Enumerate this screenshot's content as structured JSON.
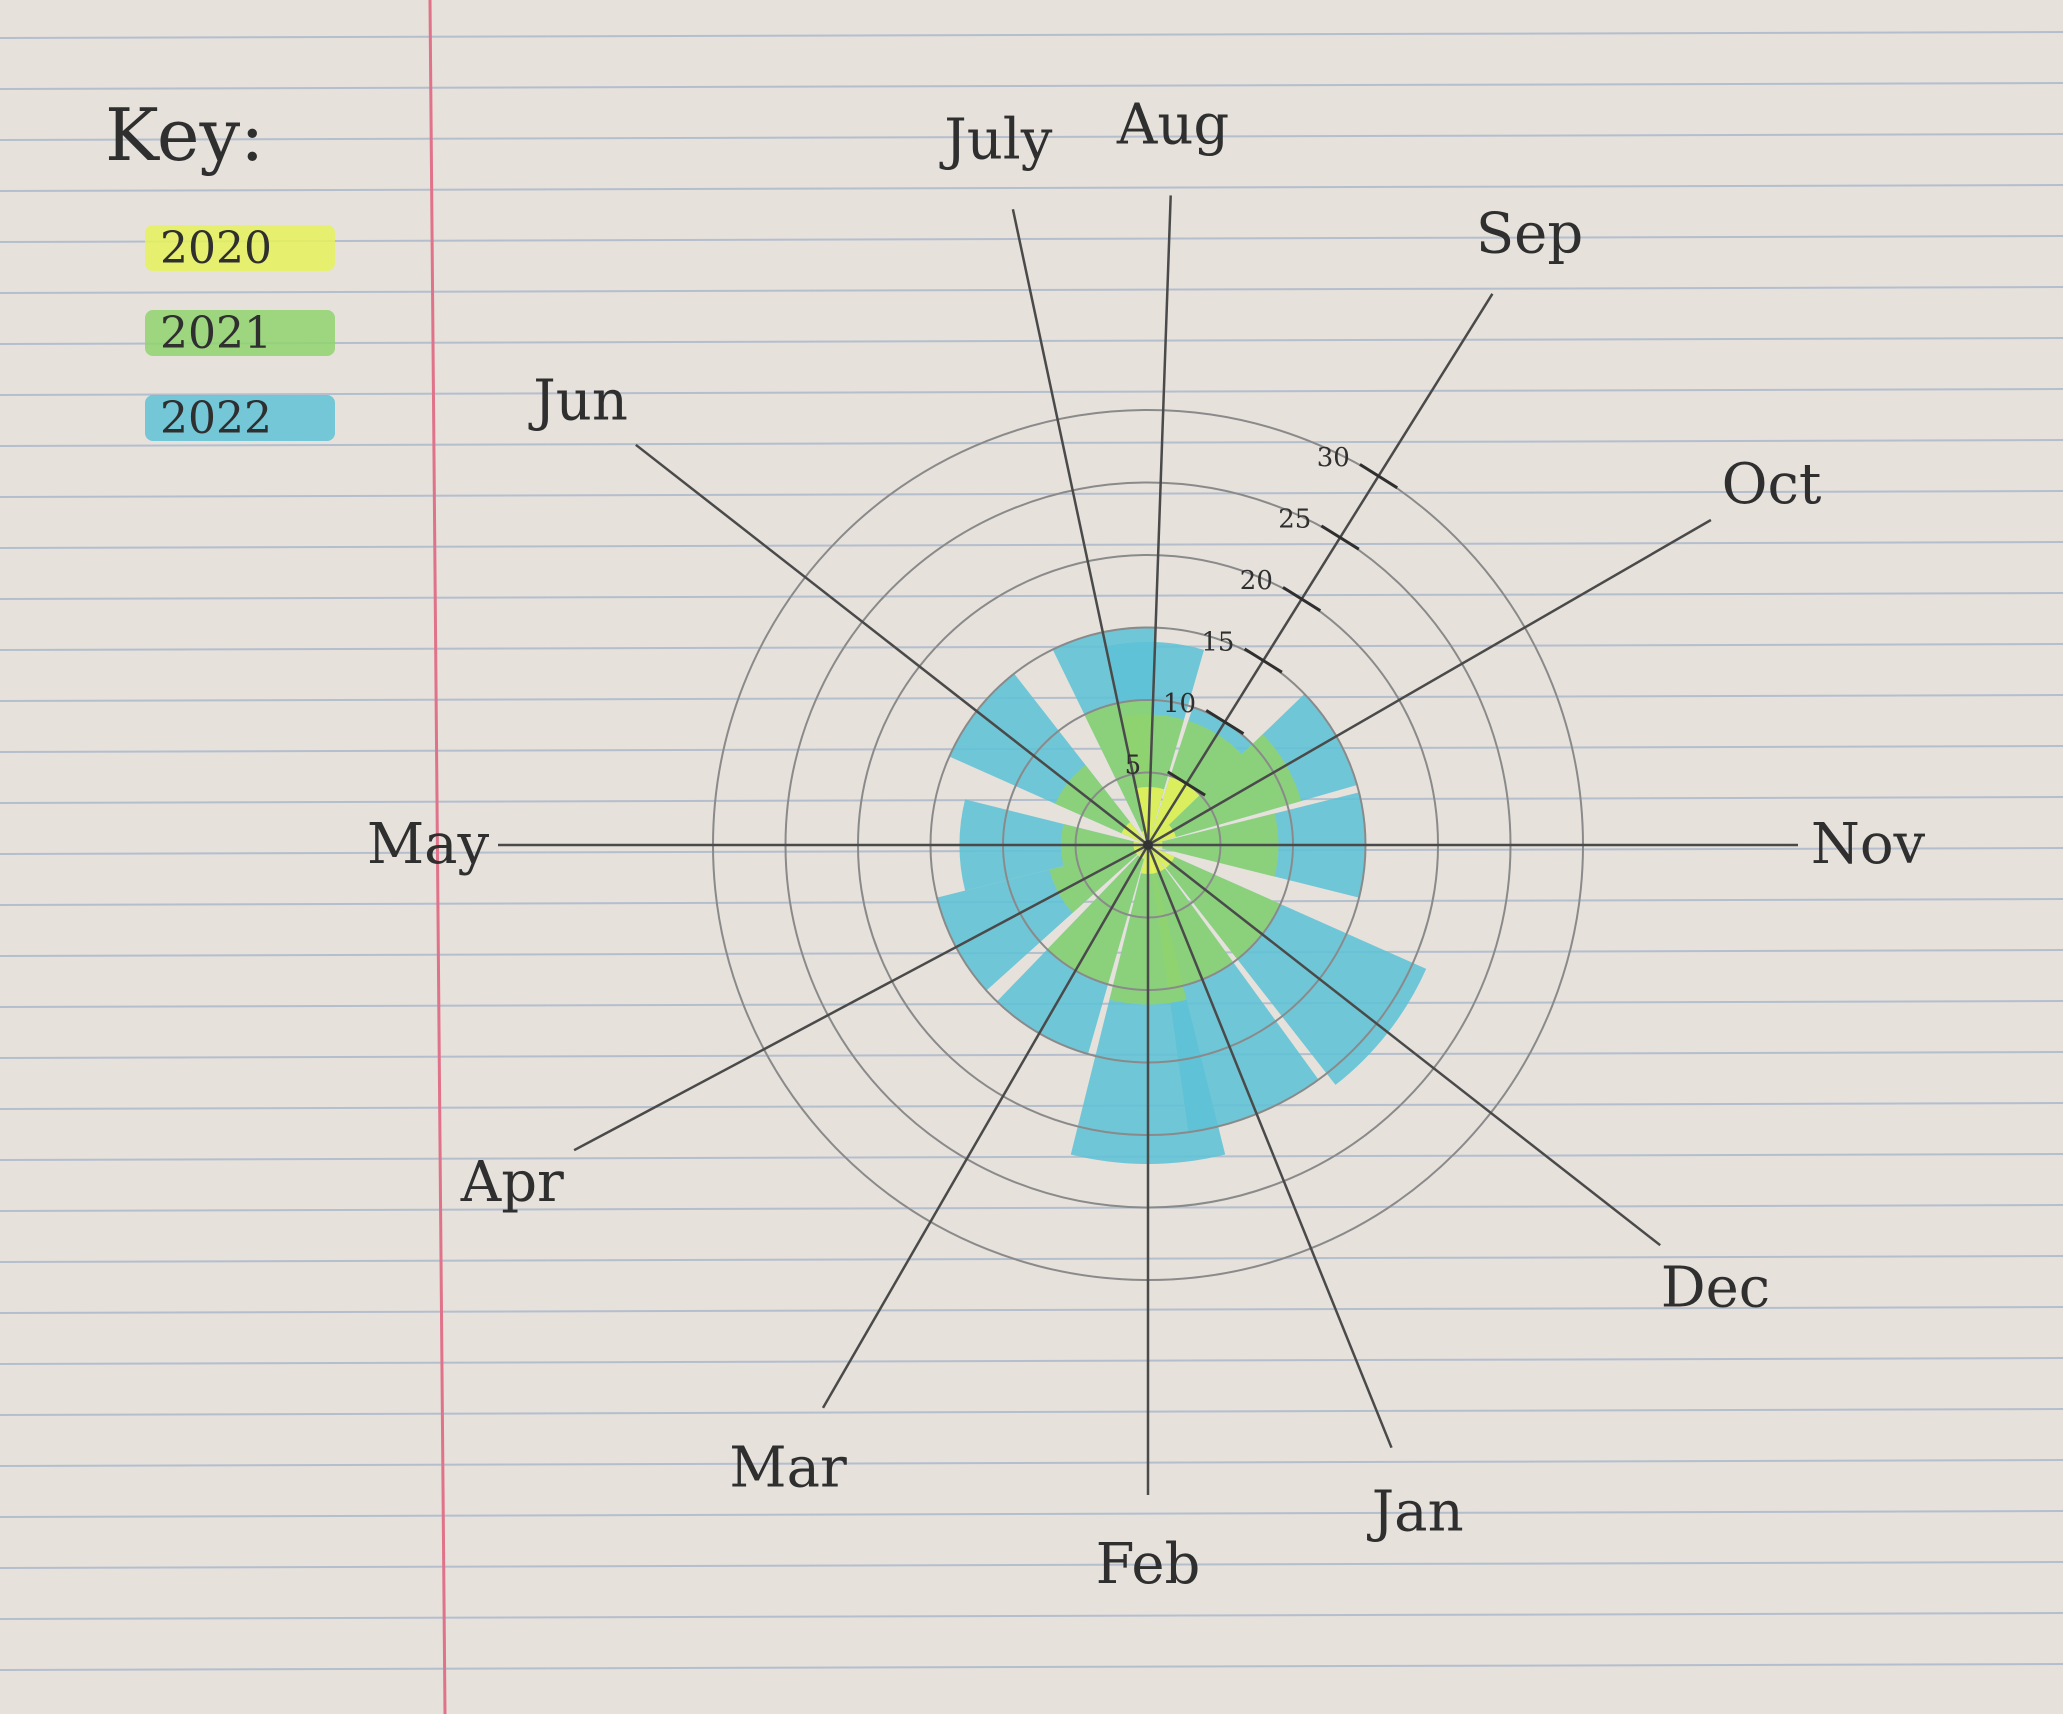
{
  "chart_data": {
    "type": "radial-bar",
    "title": "",
    "legend": {
      "title": "Key:",
      "placement": "top-left",
      "entries": [
        {
          "label": "2020",
          "color": "#e6f25a"
        },
        {
          "label": "2021",
          "color": "#8fd36f"
        },
        {
          "label": "2022",
          "color": "#5fc2d6"
        }
      ]
    },
    "categories": [
      "Jan",
      "Feb",
      "Mar",
      "Apr",
      "May",
      "Jun",
      "July",
      "Aug",
      "Sep",
      "Oct",
      "Nov",
      "Dec"
    ],
    "radial_axis": {
      "ticks": [
        "5",
        "10",
        "15",
        "20",
        "25",
        "30"
      ],
      "max": 30
    },
    "series": [
      {
        "name": "2020",
        "color": "#e6f25a",
        "values": [
          2,
          2,
          1,
          1,
          1,
          2,
          1,
          4,
          5,
          2,
          1,
          2
        ]
      },
      {
        "name": "2021",
        "color": "#8fd36f",
        "values": [
          10,
          11,
          10,
          7,
          6,
          7,
          10,
          9,
          9,
          11,
          9,
          10
        ]
      },
      {
        "name": "2022",
        "color": "#5fc2d6",
        "values": [
          20,
          22,
          15,
          15,
          13,
          15,
          15,
          14,
          10,
          15,
          15,
          21
        ]
      }
    ]
  }
}
